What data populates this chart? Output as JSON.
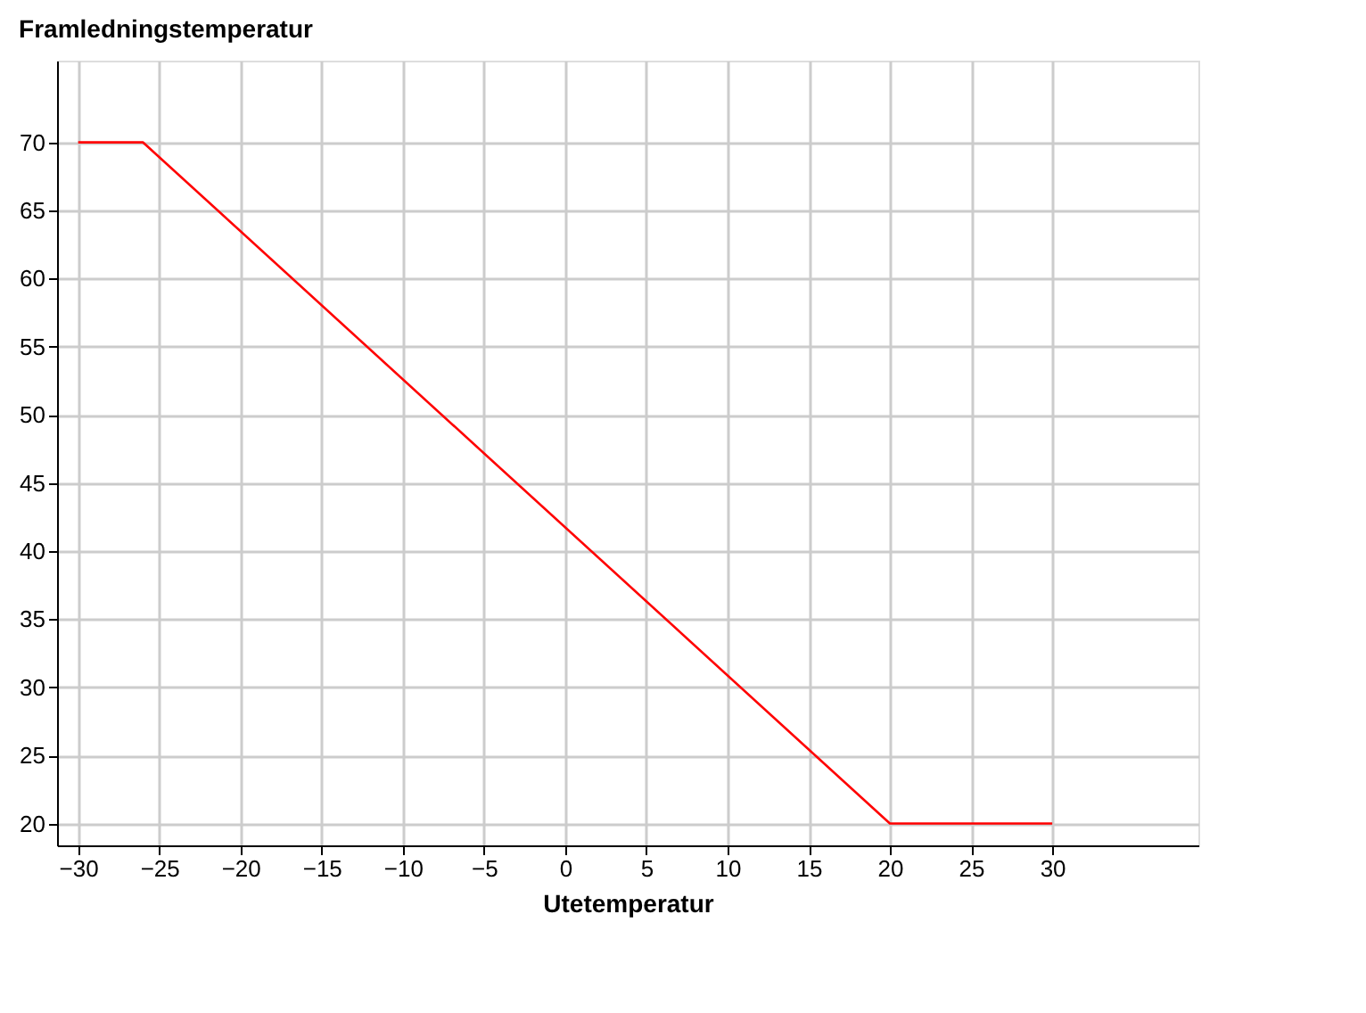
{
  "chart_data": {
    "type": "line",
    "xlabel": "Utetemperatur",
    "ylabel": "Framledningstemperatur",
    "x": [
      -30,
      -26,
      20,
      30
    ],
    "series": [
      {
        "color": "#ff0000",
        "values": [
          70,
          70,
          20,
          20
        ]
      }
    ],
    "xlim": [
      -31.3,
      39
    ],
    "ylim": [
      18.4,
      76
    ],
    "xticks": [
      -30,
      -25,
      -20,
      -15,
      -10,
      -5,
      0,
      5,
      10,
      15,
      20,
      25,
      30
    ],
    "yticks": [
      20,
      25,
      30,
      35,
      40,
      45,
      50,
      55,
      60,
      65,
      70
    ],
    "grid": true,
    "line_style": "solid",
    "marker": "none"
  }
}
